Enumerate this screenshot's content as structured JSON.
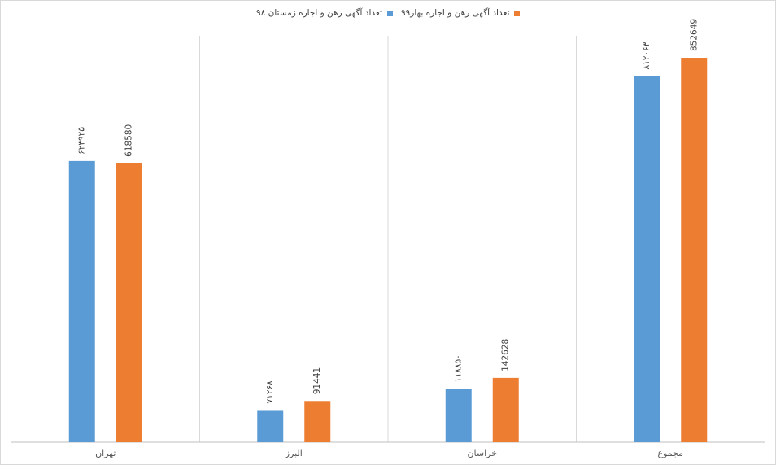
{
  "chart_data": {
    "type": "bar",
    "categories": [
      "تهران",
      "البرز",
      "خراسان",
      "مجموع"
    ],
    "series": [
      {
        "name": "تعداد آگهی رهن و اجاره زمستان ۹۸",
        "color": "#5b9bd5",
        "values": [
          623925,
          71268,
          118850,
          812063
        ],
        "labels": [
          "۶۲۳۹۲۵",
          "۷۱۲۶۸",
          "۱۱۸۸۵۰",
          "۸۱۲۰۶۳"
        ]
      },
      {
        "name": "تعداد آگهی رهن و اجاره بهار۹۹",
        "color": "#ed7d31",
        "values": [
          618580,
          91441,
          142628,
          852649
        ],
        "labels": [
          "618580",
          "91441",
          "142628",
          "852649"
        ]
      }
    ],
    "ylim": [
      0,
      900000
    ],
    "grid": false,
    "category_separators": true,
    "legend_position": "top-center"
  }
}
